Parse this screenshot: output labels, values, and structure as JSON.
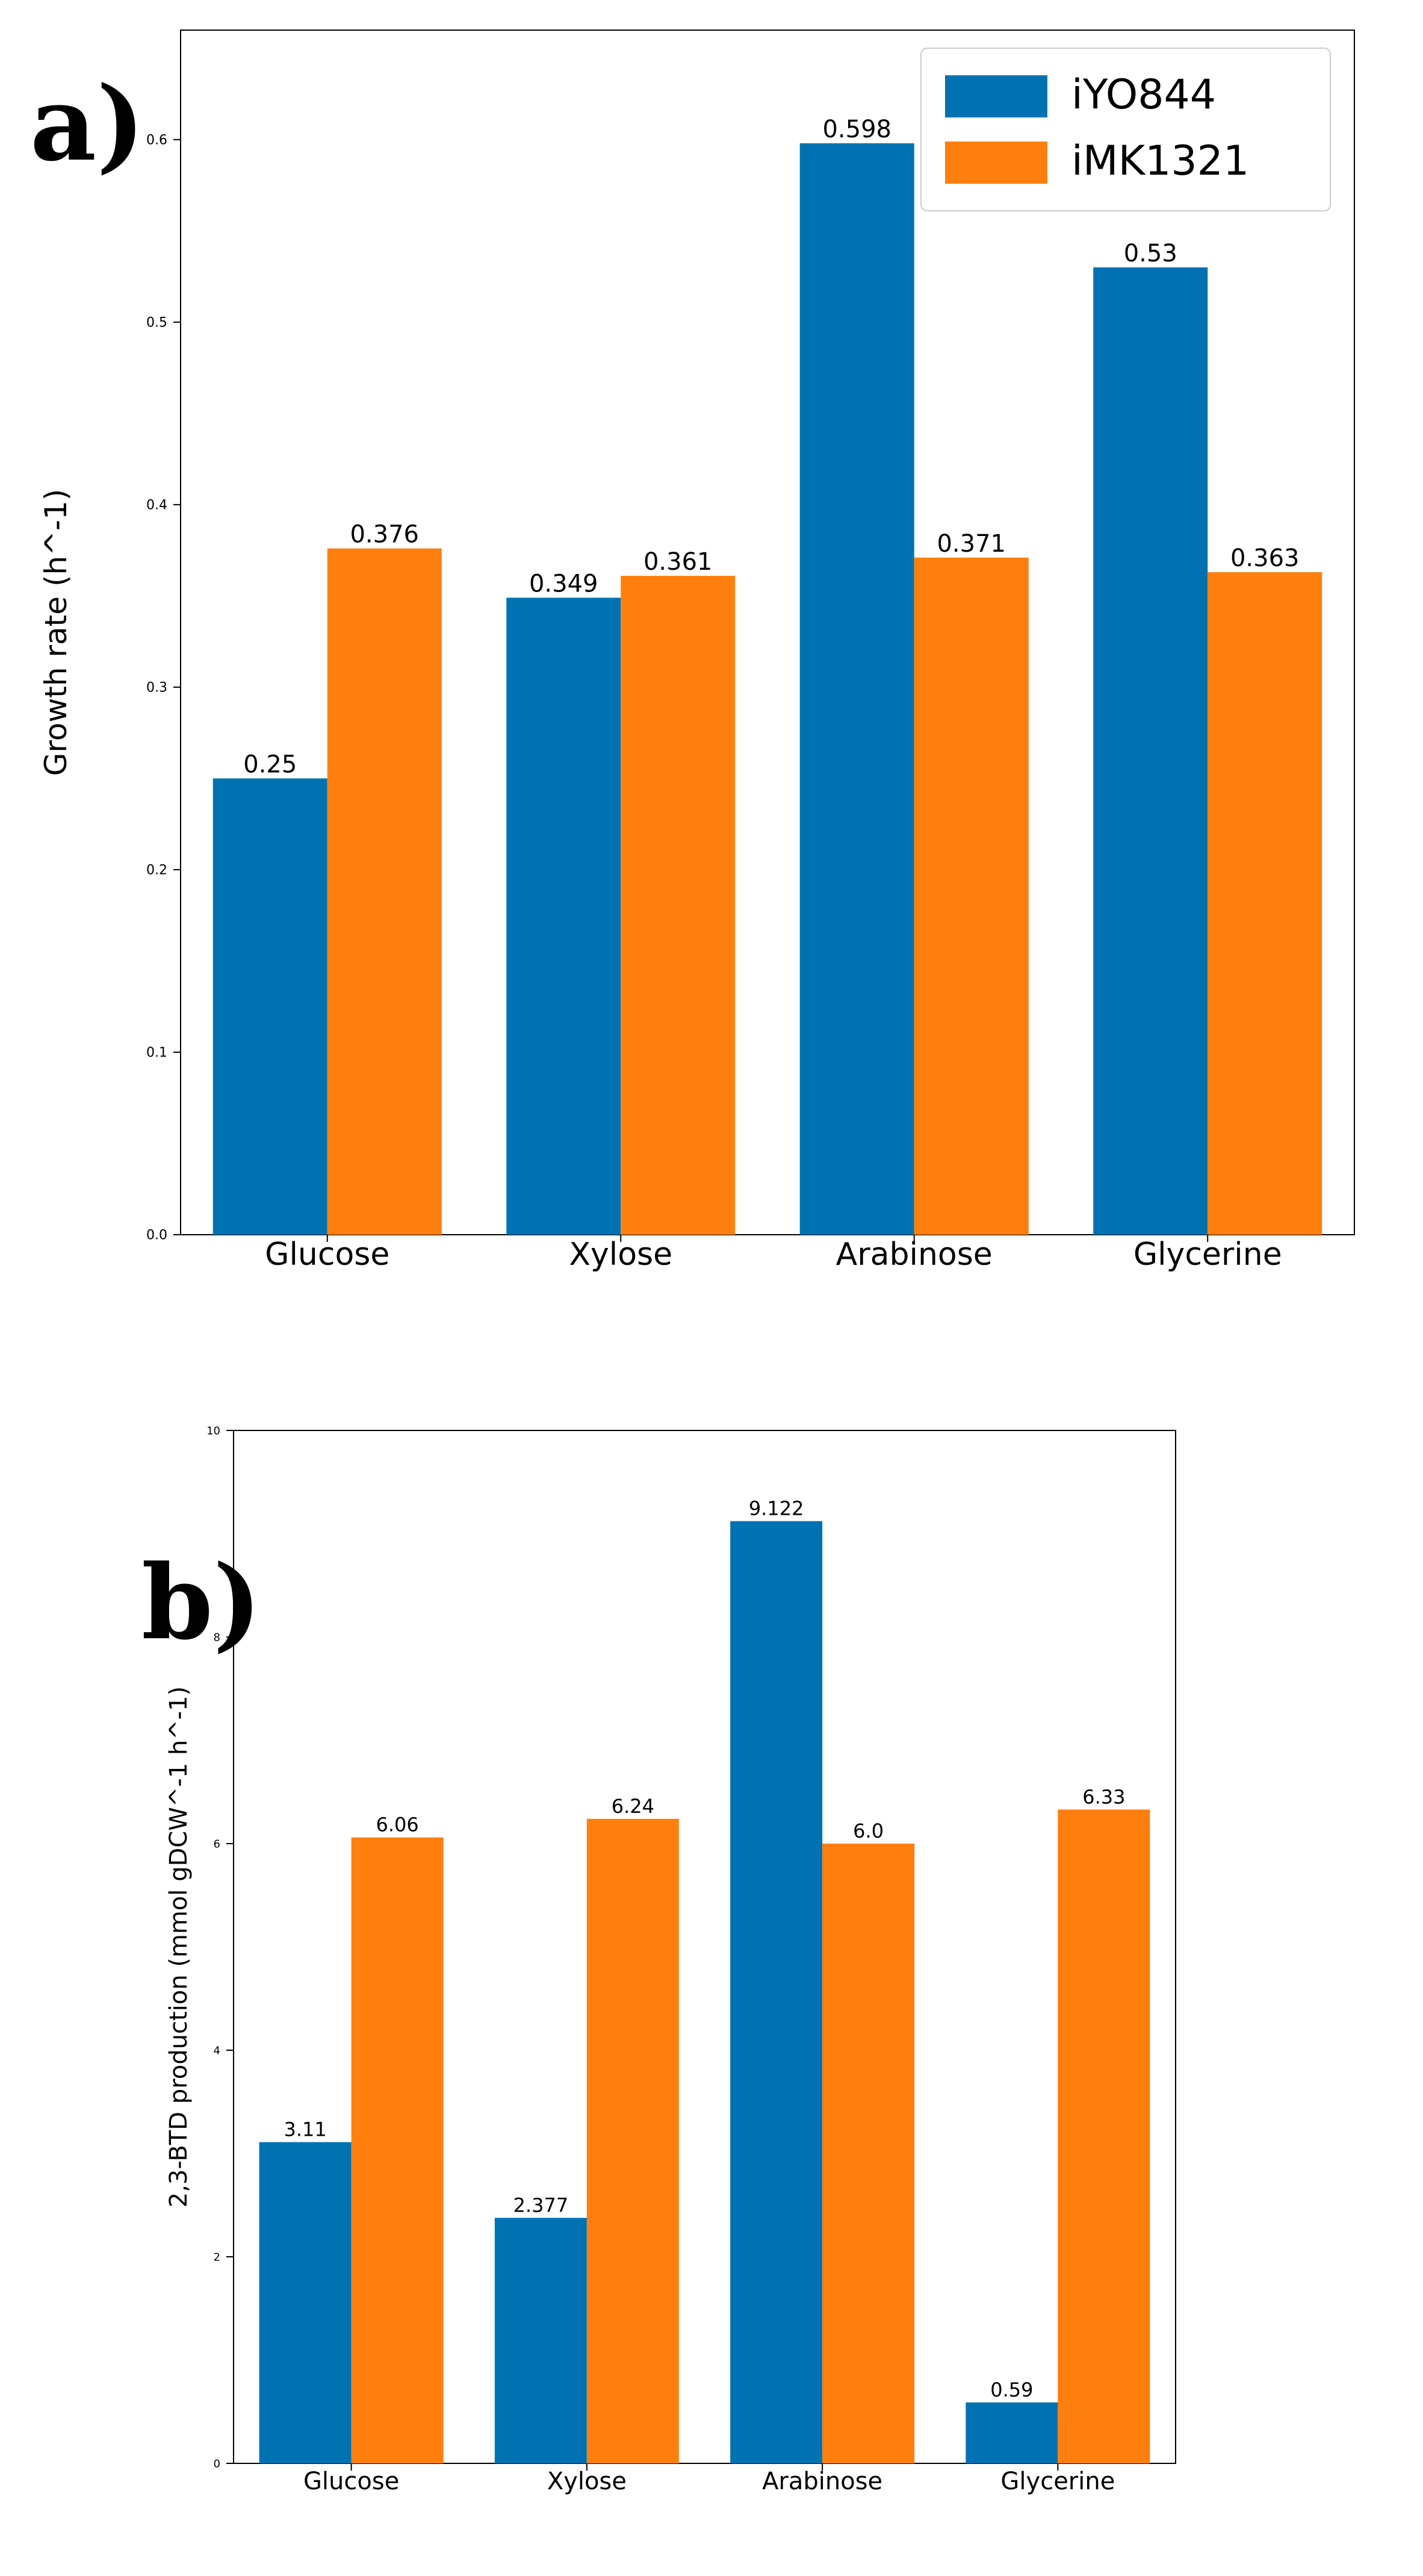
{
  "colors": {
    "series_1": "#0072b2",
    "series_2": "#ff7f0e"
  },
  "chart_data": [
    {
      "type": "bar",
      "panel_label": "a)",
      "categories": [
        "Glucose",
        "Xylose",
        "Arabinose",
        "Glycerine"
      ],
      "series": [
        {
          "name": "iYO844",
          "values": [
            0.25,
            0.349,
            0.598,
            0.53
          ],
          "value_labels": [
            "0.25",
            "0.349",
            "0.598",
            "0.53"
          ]
        },
        {
          "name": "iMK1321",
          "values": [
            0.376,
            0.361,
            0.371,
            0.363
          ],
          "value_labels": [
            "0.376",
            "0.361",
            "0.371",
            "0.363"
          ]
        }
      ],
      "ylabel": "Growth rate (h^-1)",
      "ylim": [
        0,
        0.66
      ],
      "yticks": [
        "0.0",
        "0.1",
        "0.2",
        "0.3",
        "0.4",
        "0.5",
        "0.6"
      ],
      "grid": false,
      "legend_position": "top-right"
    },
    {
      "type": "bar",
      "panel_label": "b)",
      "categories": [
        "Glucose",
        "Xylose",
        "Arabinose",
        "Glycerine"
      ],
      "series": [
        {
          "name": "iYO844",
          "values": [
            3.11,
            2.377,
            9.122,
            0.59
          ],
          "value_labels": [
            "3.11",
            "2.377",
            "9.122",
            "0.59"
          ]
        },
        {
          "name": "iMK1321",
          "values": [
            6.06,
            6.24,
            6.0,
            6.33
          ],
          "value_labels": [
            "6.06",
            "6.24",
            "6.0",
            "6.33"
          ]
        }
      ],
      "ylabel": "2,3-BTD production (mmol gDCW^-1 h^-1)",
      "ylim": [
        0,
        10
      ],
      "yticks": [
        "0",
        "2",
        "4",
        "6",
        "8",
        "10"
      ],
      "grid": false,
      "legend_position": "none"
    }
  ]
}
